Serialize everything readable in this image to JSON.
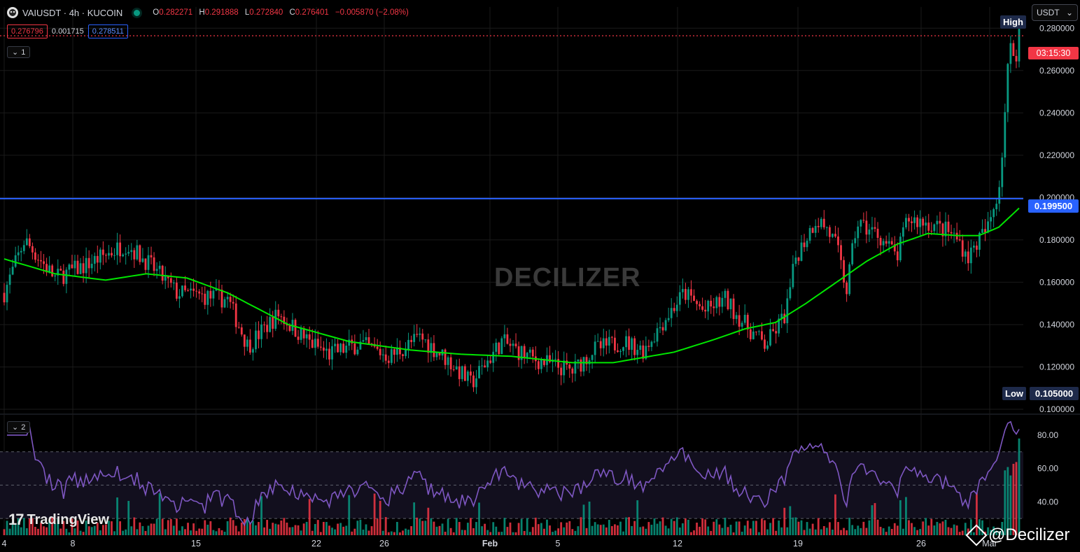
{
  "header": {
    "symbol_title": "VAIUSDT · 4h · KUCOIN",
    "ohlc": [
      {
        "k": "O",
        "v": "0.282271"
      },
      {
        "k": "H",
        "v": "0.291888"
      },
      {
        "k": "L",
        "v": "0.272840"
      },
      {
        "k": "C",
        "v": "0.276401"
      }
    ],
    "change": "−0.005870 (−2.08%)",
    "sell_price": "0.276796",
    "spread": "0.001715",
    "buy_price": "0.278511"
  },
  "panes": {
    "main_label": "1",
    "rsi_label": "2"
  },
  "unit_selector": "USDT",
  "badges": {
    "high_label": "High",
    "low_label": "Low",
    "low_value": "0.105000",
    "countdown": "03:15:30",
    "hline_value": "0.199500"
  },
  "watermark": "DECILIZER",
  "brand": "TradingView",
  "credit": "@Decilizer",
  "colors": {
    "up": "#089981",
    "down": "#f23645",
    "ma": "#00e600",
    "hline": "#2962ff",
    "rsi": "#7e57c2",
    "grid": "#1a1a1a"
  },
  "chart_data": {
    "type": "candlestick",
    "price_axis": {
      "ticks": [
        "0.100000",
        "0.120000",
        "0.140000",
        "0.160000",
        "0.180000",
        "0.200000",
        "0.220000",
        "0.240000",
        "0.260000",
        "0.280000"
      ],
      "range": [
        0.1,
        0.29
      ]
    },
    "rsi_axis": {
      "ticks": [
        "40.00",
        "60.00",
        "80.00"
      ],
      "range": [
        20,
        90
      ],
      "bands": [
        30,
        50,
        70
      ]
    },
    "time_labels": [
      "4",
      "8",
      "15",
      "22",
      "26",
      "Feb",
      "5",
      "12",
      "19",
      "26",
      "Mar"
    ],
    "horizontal_line": 0.1995,
    "current_price": 0.276401,
    "price_path": [
      [
        0,
        0.155
      ],
      [
        0.02,
        0.18
      ],
      [
        0.05,
        0.162
      ],
      [
        0.08,
        0.168
      ],
      [
        0.12,
        0.178
      ],
      [
        0.14,
        0.17
      ],
      [
        0.17,
        0.155
      ],
      [
        0.22,
        0.152
      ],
      [
        0.24,
        0.13
      ],
      [
        0.27,
        0.145
      ],
      [
        0.3,
        0.132
      ],
      [
        0.32,
        0.126
      ],
      [
        0.35,
        0.131
      ],
      [
        0.38,
        0.125
      ],
      [
        0.41,
        0.134
      ],
      [
        0.44,
        0.122
      ],
      [
        0.46,
        0.112
      ],
      [
        0.49,
        0.132
      ],
      [
        0.52,
        0.124
      ],
      [
        0.56,
        0.118
      ],
      [
        0.58,
        0.128
      ],
      [
        0.61,
        0.132
      ],
      [
        0.63,
        0.128
      ],
      [
        0.65,
        0.142
      ],
      [
        0.67,
        0.155
      ],
      [
        0.69,
        0.146
      ],
      [
        0.71,
        0.152
      ],
      [
        0.73,
        0.14
      ],
      [
        0.75,
        0.13
      ],
      [
        0.77,
        0.145
      ],
      [
        0.78,
        0.172
      ],
      [
        0.8,
        0.19
      ],
      [
        0.81,
        0.186
      ],
      [
        0.82,
        0.177
      ],
      [
        0.83,
        0.156
      ],
      [
        0.84,
        0.188
      ],
      [
        0.86,
        0.183
      ],
      [
        0.88,
        0.172
      ],
      [
        0.89,
        0.19
      ],
      [
        0.91,
        0.188
      ],
      [
        0.93,
        0.184
      ],
      [
        0.94,
        0.18
      ],
      [
        0.95,
        0.172
      ],
      [
        0.96,
        0.18
      ],
      [
        0.97,
        0.186
      ],
      [
        0.98,
        0.205
      ],
      [
        0.99,
        0.265
      ],
      [
        1.0,
        0.2765
      ]
    ],
    "ma_path": [
      [
        0,
        0.171
      ],
      [
        0.05,
        0.164
      ],
      [
        0.1,
        0.161
      ],
      [
        0.14,
        0.164
      ],
      [
        0.18,
        0.162
      ],
      [
        0.22,
        0.155
      ],
      [
        0.28,
        0.14
      ],
      [
        0.34,
        0.132
      ],
      [
        0.4,
        0.128
      ],
      [
        0.45,
        0.126
      ],
      [
        0.5,
        0.125
      ],
      [
        0.56,
        0.122
      ],
      [
        0.6,
        0.122
      ],
      [
        0.66,
        0.127
      ],
      [
        0.7,
        0.133
      ],
      [
        0.73,
        0.138
      ],
      [
        0.76,
        0.141
      ],
      [
        0.79,
        0.15
      ],
      [
        0.82,
        0.16
      ],
      [
        0.85,
        0.17
      ],
      [
        0.88,
        0.178
      ],
      [
        0.91,
        0.183
      ],
      [
        0.94,
        0.182
      ],
      [
        0.96,
        0.182
      ],
      [
        0.98,
        0.186
      ],
      [
        1.0,
        0.195
      ]
    ]
  }
}
